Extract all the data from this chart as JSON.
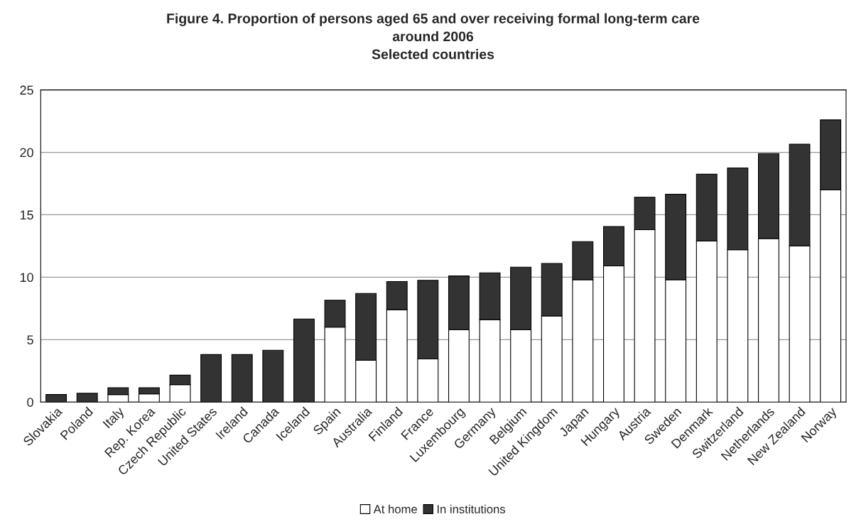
{
  "chart_data": {
    "type": "bar",
    "title": "Figure 4. Proportion of persons aged 65 and over receiving formal long-term care\naround 2006\nSelected countries",
    "categories": [
      "Slovakia",
      "Poland",
      "Italy",
      "Rep. Korea",
      "Czech Republic",
      "United States",
      "Ireland",
      "Canada",
      "Iceland",
      "Spain",
      "Australia",
      "Finland",
      "France",
      "Luxembourg",
      "Germany",
      "Belgium",
      "United Kingdom",
      "Japan",
      "Hungary",
      "Austria",
      "Sweden",
      "Denmark",
      "Switzerland",
      "Netherlands",
      "New Zealand",
      "Norway"
    ],
    "stacked": true,
    "series": [
      {
        "name": "At home",
        "color": "#ffffff",
        "values": [
          0,
          0,
          0.6,
          0.65,
          1.4,
          0,
          0,
          0,
          0,
          6.0,
          3.35,
          7.4,
          3.45,
          5.8,
          6.6,
          5.8,
          6.9,
          9.8,
          10.9,
          13.8,
          9.8,
          12.9,
          12.2,
          13.1,
          12.5,
          17.0
        ]
      },
      {
        "name": "In institutions",
        "color": "#333333",
        "values": [
          0.6,
          0.7,
          0.55,
          0.5,
          0.75,
          3.8,
          3.8,
          4.15,
          6.65,
          2.15,
          5.35,
          2.25,
          6.3,
          4.3,
          3.75,
          5.0,
          4.2,
          3.05,
          3.15,
          2.6,
          6.85,
          5.35,
          6.55,
          6.8,
          8.15,
          5.6
        ]
      }
    ],
    "ylim": [
      0,
      25
    ],
    "yticks": [
      0,
      5,
      10,
      15,
      20,
      25
    ],
    "grid": "y",
    "legend": "bottom"
  }
}
